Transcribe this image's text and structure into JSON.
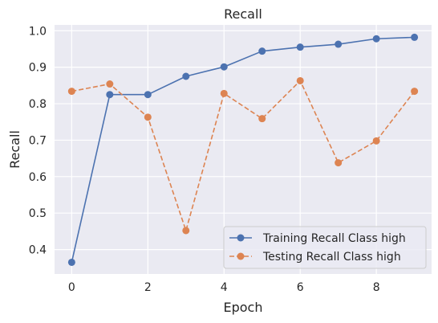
{
  "chart_data": {
    "type": "line",
    "title": "Recall",
    "xlabel": "Epoch",
    "ylabel": "Recall",
    "x": [
      0,
      1,
      2,
      3,
      4,
      5,
      6,
      7,
      8,
      9
    ],
    "xlim": [
      -0.45,
      9.45
    ],
    "ylim": [
      0.333,
      1.016
    ],
    "xticks": [
      0,
      2,
      4,
      6,
      8
    ],
    "xtick_labels": [
      "0",
      "2",
      "4",
      "6",
      "8"
    ],
    "yticks": [
      0.4,
      0.5,
      0.6,
      0.7,
      0.8,
      0.9,
      1.0
    ],
    "ytick_labels": [
      "0.4",
      "0.5",
      "0.6",
      "0.7",
      "0.8",
      "0.9",
      "1.0"
    ],
    "grid": true,
    "legend_position": "lower-right",
    "series": [
      {
        "name": "Training Recall Class high",
        "color": "#4c72b0",
        "line_style": "solid",
        "marker": "circle",
        "values": [
          0.365,
          0.825,
          0.825,
          0.875,
          0.901,
          0.944,
          0.955,
          0.963,
          0.978,
          0.982
        ]
      },
      {
        "name": "Testing Recall Class high",
        "color": "#dd8452",
        "line_style": "dashed",
        "marker": "circle",
        "values": [
          0.834,
          0.854,
          0.763,
          0.452,
          0.828,
          0.759,
          0.863,
          0.638,
          0.698,
          0.834
        ]
      }
    ]
  }
}
